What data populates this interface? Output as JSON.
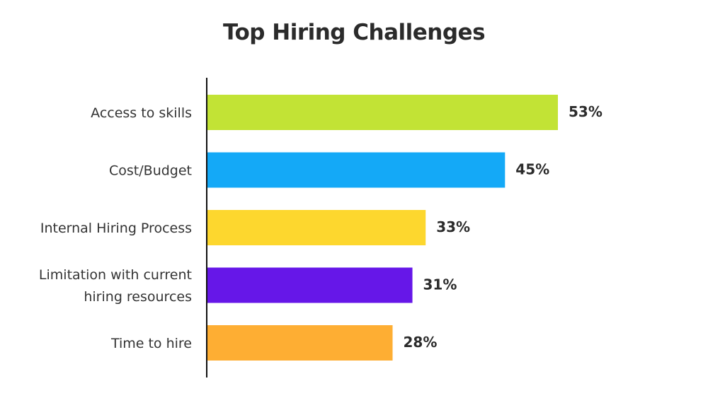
{
  "chart_data": {
    "type": "bar",
    "orientation": "horizontal",
    "title": "Top Hiring Challenges",
    "categories": [
      [
        "Access to skills"
      ],
      [
        "Cost/Budget"
      ],
      [
        "Internal Hiring Process"
      ],
      [
        "Limitation with current",
        "hiring resources"
      ],
      [
        "Time to hire"
      ]
    ],
    "values": [
      53,
      45,
      33,
      31,
      28
    ],
    "value_labels": [
      "53%",
      "45%",
      "33%",
      "31%",
      "28%"
    ],
    "colors": [
      "#c2e335",
      "#14a9f7",
      "#fdd72e",
      "#6617e8",
      "#feae33"
    ],
    "xlim": [
      0,
      53
    ],
    "grid": false,
    "legend": "none"
  }
}
